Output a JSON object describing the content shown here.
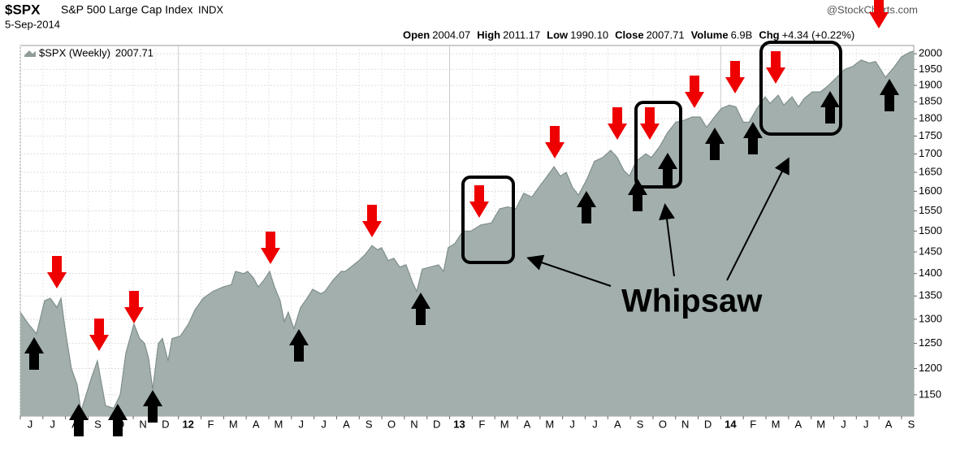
{
  "chart_data": {
    "type": "area",
    "title": "$SPX",
    "subtitle": "S&P 500 Large Cap Index",
    "exchange": "INDX",
    "date": "5-Sep-2014",
    "source": "@StockCharts.com",
    "quote": [
      [
        "Open",
        "2004.07"
      ],
      [
        "High",
        "2011.17"
      ],
      [
        "Low",
        "1990.10"
      ],
      [
        "Close",
        "2007.71"
      ],
      [
        "Volume",
        "6.9B"
      ],
      [
        "Chg",
        "+4.34 (+0.22%)"
      ]
    ],
    "annotation": "Whipsaw",
    "log_scale": true,
    "grid": true,
    "xlim": [
      -0.43,
      39.11
    ],
    "ylim": [
      1111,
      2027
    ],
    "yticks": [
      1150,
      1200,
      1250,
      1300,
      1350,
      1400,
      1450,
      1500,
      1550,
      1600,
      1650,
      1700,
      1750,
      1800,
      1850,
      1900,
      1950,
      2000
    ],
    "xticks": [
      {
        "value": 0,
        "label": "J"
      },
      {
        "value": 1,
        "label": "J"
      },
      {
        "value": 2,
        "label": "A"
      },
      {
        "value": 3,
        "label": "S"
      },
      {
        "value": 4,
        "label": "O"
      },
      {
        "value": 5,
        "label": "N"
      },
      {
        "value": 6,
        "label": "D"
      },
      {
        "value": 7,
        "label": "12"
      },
      {
        "value": 8,
        "label": "F"
      },
      {
        "value": 9,
        "label": "M"
      },
      {
        "value": 10,
        "label": "A"
      },
      {
        "value": 11,
        "label": "M"
      },
      {
        "value": 12,
        "label": "J"
      },
      {
        "value": 13,
        "label": "J"
      },
      {
        "value": 14,
        "label": "A"
      },
      {
        "value": 15,
        "label": "S"
      },
      {
        "value": 16,
        "label": "O"
      },
      {
        "value": 17,
        "label": "N"
      },
      {
        "value": 18,
        "label": "D"
      },
      {
        "value": 19,
        "label": "13"
      },
      {
        "value": 20,
        "label": "F"
      },
      {
        "value": 21,
        "label": "M"
      },
      {
        "value": 22,
        "label": "A"
      },
      {
        "value": 23,
        "label": "M"
      },
      {
        "value": 24,
        "label": "J"
      },
      {
        "value": 25,
        "label": "J"
      },
      {
        "value": 26,
        "label": "A"
      },
      {
        "value": 27,
        "label": "S"
      },
      {
        "value": 28,
        "label": "O"
      },
      {
        "value": 29,
        "label": "N"
      },
      {
        "value": 30,
        "label": "D"
      },
      {
        "value": 31,
        "label": "14"
      },
      {
        "value": 32,
        "label": "F"
      },
      {
        "value": 33,
        "label": "M"
      },
      {
        "value": 34,
        "label": "A"
      },
      {
        "value": 35,
        "label": "M"
      },
      {
        "value": 36,
        "label": "J"
      },
      {
        "value": 37,
        "label": "J"
      },
      {
        "value": 38,
        "label": "A"
      },
      {
        "value": 39,
        "label": "S"
      }
    ],
    "series": [
      {
        "name": "$SPX (Weekly)",
        "last_label": "2007.71",
        "color": "#a2afad",
        "x": [
          -0.43,
          -0.07,
          0.29,
          0.65,
          0.9,
          1.19,
          1.37,
          1.55,
          1.83,
          2.08,
          2.26,
          2.7,
          2.98,
          3.34,
          3.7,
          3.99,
          4.24,
          4.42,
          4.6,
          4.85,
          5.07,
          5.25,
          5.43,
          5.68,
          5.86,
          6.11,
          6.29,
          6.65,
          7.01,
          7.3,
          7.66,
          8.09,
          8.55,
          8.91,
          9.09,
          9.45,
          9.63,
          9.89,
          10.1,
          10.35,
          10.6,
          10.82,
          11.07,
          11.25,
          11.43,
          11.68,
          11.97,
          12.26,
          12.51,
          12.87,
          13.05,
          13.41,
          13.77,
          13.95,
          14.2,
          14.56,
          14.85,
          15.13,
          15.38,
          15.56,
          15.85,
          16.1,
          16.36,
          16.64,
          16.93,
          17.11,
          17.36,
          17.72,
          18.08,
          18.3,
          18.51,
          18.8,
          19.16,
          19.52,
          19.95,
          20.42,
          20.78,
          21.14,
          21.5,
          21.85,
          22.21,
          22.57,
          22.83,
          23.19,
          23.47,
          23.73,
          24.01,
          24.27,
          24.63,
          24.98,
          25.34,
          25.7,
          25.99,
          26.28,
          26.53,
          26.82,
          27.25,
          27.5,
          27.86,
          28.22,
          28.58,
          28.94,
          29.3,
          29.66,
          29.94,
          30.23,
          30.59,
          30.95,
          31.24,
          31.56,
          31.82,
          32.17,
          32.53,
          32.75,
          33.11,
          33.36,
          33.72,
          34.01,
          34.26,
          34.62,
          34.98,
          35.34,
          35.7,
          36.06,
          36.42,
          36.78,
          37.14,
          37.42,
          37.86,
          38.22,
          38.57,
          38.93,
          39.11
        ],
        "values": [
          1315,
          1290,
          1270,
          1340,
          1345,
          1325,
          1345,
          1280,
          1200,
          1170,
          1120,
          1180,
          1215,
          1130,
          1125,
          1150,
          1230,
          1260,
          1290,
          1260,
          1250,
          1220,
          1160,
          1250,
          1260,
          1215,
          1260,
          1265,
          1290,
          1320,
          1345,
          1360,
          1370,
          1375,
          1405,
          1400,
          1405,
          1390,
          1370,
          1385,
          1405,
          1370,
          1340,
          1295,
          1315,
          1280,
          1325,
          1345,
          1365,
          1355,
          1360,
          1385,
          1405,
          1405,
          1415,
          1430,
          1445,
          1465,
          1455,
          1460,
          1430,
          1435,
          1415,
          1420,
          1380,
          1360,
          1410,
          1415,
          1420,
          1405,
          1460,
          1470,
          1500,
          1500,
          1515,
          1520,
          1555,
          1560,
          1555,
          1595,
          1585,
          1615,
          1635,
          1665,
          1640,
          1650,
          1610,
          1590,
          1630,
          1680,
          1690,
          1710,
          1690,
          1655,
          1640,
          1680,
          1700,
          1690,
          1720,
          1760,
          1790,
          1795,
          1805,
          1805,
          1775,
          1800,
          1830,
          1840,
          1835,
          1790,
          1790,
          1830,
          1865,
          1845,
          1870,
          1840,
          1865,
          1835,
          1860,
          1880,
          1880,
          1900,
          1925,
          1950,
          1960,
          1980,
          1970,
          1975,
          1925,
          1955,
          1990,
          2005,
          2008
        ]
      }
    ]
  }
}
